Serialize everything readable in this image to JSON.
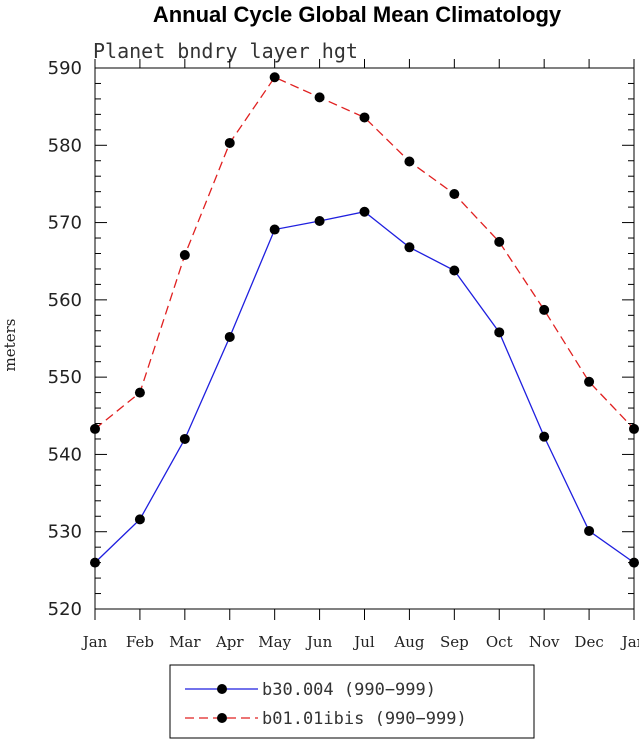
{
  "chart_data": {
    "type": "line",
    "title": "Annual Cycle Global Mean Climatology",
    "subtitle": "Planet bndry layer hgt",
    "xlabel": "",
    "ylabel": "meters",
    "categories": [
      "Jan",
      "Feb",
      "Mar",
      "Apr",
      "May",
      "Jun",
      "Jul",
      "Aug",
      "Sep",
      "Oct",
      "Nov",
      "Dec",
      "Jan"
    ],
    "ylim": [
      520,
      590
    ],
    "yticks": [
      "520",
      "530",
      "540",
      "550",
      "560",
      "570",
      "580",
      "590"
    ],
    "grid": false,
    "legend_position": "bottom",
    "series": [
      {
        "name": "b30.004 (990−999)",
        "color": "#1f1fdf",
        "line_style": "solid",
        "values": [
          526.0,
          531.6,
          542.0,
          555.2,
          569.1,
          570.2,
          571.4,
          566.8,
          563.8,
          555.8,
          542.3,
          530.1,
          526.0
        ]
      },
      {
        "name": "b01.01ibis (990−999)",
        "color": "#e02020",
        "line_style": "dashed",
        "values": [
          543.3,
          548.0,
          565.8,
          580.3,
          588.8,
          586.2,
          583.6,
          577.9,
          573.7,
          567.5,
          558.7,
          549.4,
          543.3
        ]
      }
    ]
  }
}
